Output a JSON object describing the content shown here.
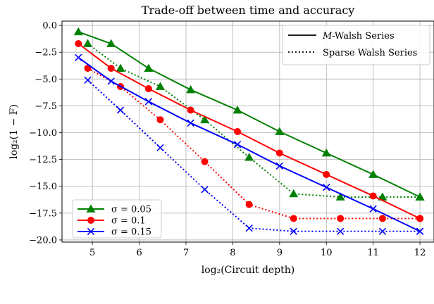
{
  "chart_data": {
    "type": "line",
    "title": "Trade-off between time and accuracy",
    "xlabel": "log₂(Circuit depth)",
    "ylabel": "log₂(1 − F)",
    "xlim": [
      4.35,
      12.3
    ],
    "ylim": [
      -20.2,
      0.4
    ],
    "xticks": [
      5,
      6,
      7,
      8,
      9,
      10,
      11,
      12
    ],
    "yticks": [
      0.0,
      -2.5,
      -5.0,
      -7.5,
      -10.0,
      -12.5,
      -15.0,
      -17.5,
      -20.0
    ],
    "xtick_labels": [
      "5",
      "6",
      "7",
      "8",
      "9",
      "10",
      "11",
      "12"
    ],
    "ytick_labels": [
      "0.0",
      "−2.5",
      "−5.0",
      "−7.5",
      "−10.0",
      "−12.5",
      "−15.0",
      "−17.5",
      "−20.0"
    ],
    "grid": true,
    "style_legend": {
      "placement": "top-right",
      "entries": [
        {
          "label": "M-Walsh Series",
          "italic_part": "M",
          "rest": "-Walsh Series",
          "linestyle": "solid"
        },
        {
          "label": "Sparse Walsh Series",
          "linestyle": "dotted"
        }
      ]
    },
    "color_legend": {
      "placement": "bottom-left",
      "entries": [
        {
          "label": "σ = 0.05",
          "color": "#008000",
          "marker": "triangle"
        },
        {
          "label": "σ = 0.1",
          "color": "#ff0000",
          "marker": "circle"
        },
        {
          "label": "σ = 0.15",
          "color": "#0000ff",
          "marker": "x"
        }
      ]
    },
    "series": [
      {
        "group": "σ = 0.05",
        "method": "M-Walsh Series",
        "color": "#008000",
        "marker": "triangle",
        "linestyle": "solid",
        "x": [
          4.7,
          5.4,
          6.2,
          7.1,
          8.1,
          9.0,
          10.0,
          11.0,
          12.0
        ],
        "y": [
          -0.6,
          -1.7,
          -4.0,
          -6.0,
          -7.9,
          -9.9,
          -11.9,
          -13.9,
          -16.0
        ]
      },
      {
        "group": "σ = 0.05",
        "method": "Sparse Walsh Series",
        "color": "#008000",
        "marker": "triangle",
        "linestyle": "dotted",
        "x": [
          4.9,
          5.6,
          6.45,
          7.4,
          8.35,
          9.3,
          10.3,
          11.2,
          12.0
        ],
        "y": [
          -1.7,
          -4.0,
          -5.7,
          -8.8,
          -12.3,
          -15.7,
          -16.0,
          -16.0,
          -16.0
        ]
      },
      {
        "group": "σ = 0.1",
        "method": "M-Walsh Series",
        "color": "#ff0000",
        "marker": "circle",
        "linestyle": "solid",
        "x": [
          4.7,
          5.4,
          6.2,
          7.1,
          8.1,
          9.0,
          10.0,
          11.0,
          12.0
        ],
        "y": [
          -1.7,
          -4.0,
          -5.9,
          -7.9,
          -9.9,
          -11.9,
          -13.9,
          -15.9,
          -18.0
        ]
      },
      {
        "group": "σ = 0.1",
        "method": "Sparse Walsh Series",
        "color": "#ff0000",
        "marker": "circle",
        "linestyle": "dotted",
        "x": [
          4.9,
          5.6,
          6.45,
          7.4,
          8.35,
          9.3,
          10.3,
          11.2,
          12.0
        ],
        "y": [
          -4.0,
          -5.7,
          -8.8,
          -12.7,
          -16.7,
          -18.0,
          -18.0,
          -18.0,
          -18.0
        ]
      },
      {
        "group": "σ = 0.15",
        "method": "M-Walsh Series",
        "color": "#0000ff",
        "marker": "x",
        "linestyle": "solid",
        "x": [
          4.7,
          5.4,
          6.2,
          7.1,
          8.1,
          9.0,
          10.0,
          11.0,
          12.0
        ],
        "y": [
          -3.0,
          -5.2,
          -7.1,
          -9.1,
          -11.1,
          -13.1,
          -15.1,
          -17.1,
          -19.2
        ]
      },
      {
        "group": "σ = 0.15",
        "method": "Sparse Walsh Series",
        "color": "#0000ff",
        "marker": "x",
        "linestyle": "dotted",
        "x": [
          4.9,
          5.6,
          6.45,
          7.4,
          8.35,
          9.3,
          10.3,
          11.2,
          12.0
        ],
        "y": [
          -5.1,
          -7.9,
          -11.4,
          -15.3,
          -18.9,
          -19.2,
          -19.2,
          -19.2,
          -19.2
        ]
      }
    ]
  }
}
